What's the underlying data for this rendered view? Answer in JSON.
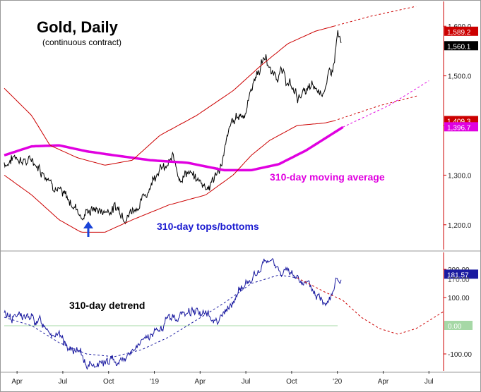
{
  "colors": {
    "price": "#000000",
    "cycle_band": "#cc0000",
    "projection": "#cc0000",
    "moving_average": "#e000e0",
    "detrend_line": "#1a1aa0",
    "detrend_cycle": "#1a1aa0",
    "zero_line": "#a6d8a6",
    "axis": "#cc0000",
    "arrow": "#1a44d8",
    "label_blue": "#1a1ad0",
    "label_magenta": "#e000e0"
  },
  "chart_data": [
    {
      "panel": "upper",
      "type": "line",
      "title": "Gold, Daily",
      "subtitle": "(continuous contract)",
      "ylim": [
        1150,
        1650
      ],
      "y_ticks": [
        1200,
        1300,
        1400,
        1500,
        1600
      ],
      "y_tick_labels": [
        "1,200.0",
        "1,300.0",
        "1,400.0",
        "1,500.0",
        "1,600.0"
      ],
      "price_labels": [
        {
          "value": 1589.2,
          "text": "1,589.2",
          "style": "red-box"
        },
        {
          "value": 1560.1,
          "text": "1,560.1",
          "style": "black-box"
        },
        {
          "value": 1409.3,
          "text": "1,409.3",
          "style": "red-box"
        },
        {
          "value": 1396.7,
          "text": "1,396.7",
          "style": "magenta-box"
        }
      ],
      "time_axis": {
        "start": 2018.2,
        "end": 2020.6,
        "ticks": [
          {
            "t": 2018.27,
            "label": "Apr"
          },
          {
            "t": 2018.52,
            "label": "Jul"
          },
          {
            "t": 2018.77,
            "label": "Oct"
          },
          {
            "t": 2019.02,
            "label": "'19"
          },
          {
            "t": 2019.27,
            "label": "Apr"
          },
          {
            "t": 2019.52,
            "label": "Jul"
          },
          {
            "t": 2019.77,
            "label": "Oct"
          },
          {
            "t": 2020.02,
            "label": "'20"
          },
          {
            "t": 2020.27,
            "label": "Apr"
          },
          {
            "t": 2020.52,
            "label": "Jul"
          }
        ]
      },
      "series": [
        {
          "name": "Gold price",
          "style": "black-noisy",
          "x": [
            2018.2,
            2018.23,
            2018.25,
            2018.27,
            2018.3,
            2018.33,
            2018.36,
            2018.4,
            2018.44,
            2018.48,
            2018.52,
            2018.56,
            2018.6,
            2018.63,
            2018.66,
            2018.7,
            2018.73,
            2018.76,
            2018.8,
            2018.84,
            2018.88,
            2018.92,
            2018.96,
            2019.0,
            2019.04,
            2019.08,
            2019.12,
            2019.16,
            2019.2,
            2019.24,
            2019.28,
            2019.32,
            2019.36,
            2019.4,
            2019.44,
            2019.48,
            2019.52,
            2019.56,
            2019.6,
            2019.63,
            2019.66,
            2019.7,
            2019.73,
            2019.76,
            2019.8,
            2019.84,
            2019.88,
            2019.92,
            2019.96,
            2020.0,
            2020.02,
            2020.04
          ],
          "y": [
            1325,
            1330,
            1335,
            1340,
            1335,
            1325,
            1330,
            1315,
            1300,
            1285,
            1255,
            1245,
            1235,
            1215,
            1230,
            1232,
            1228,
            1230,
            1235,
            1230,
            1225,
            1240,
            1250,
            1285,
            1320,
            1310,
            1330,
            1300,
            1310,
            1290,
            1285,
            1280,
            1300,
            1340,
            1400,
            1420,
            1430,
            1490,
            1520,
            1540,
            1500,
            1510,
            1495,
            1480,
            1460,
            1465,
            1470,
            1470,
            1480,
            1520,
            1585,
            1560
          ]
        },
        {
          "name": "310-day moving average",
          "style": "magenta",
          "x": [
            2018.2,
            2018.35,
            2018.5,
            2018.65,
            2018.8,
            2019.0,
            2019.2,
            2019.4,
            2019.55,
            2019.7,
            2019.85,
            2020.0,
            2020.05
          ],
          "y": [
            1340,
            1358,
            1360,
            1348,
            1340,
            1330,
            1325,
            1310,
            1310,
            1322,
            1350,
            1385,
            1396.7
          ]
        },
        {
          "name": "MA projection",
          "style": "magenta-dashed",
          "x": [
            2020.05,
            2020.3,
            2020.52
          ],
          "y": [
            1396.7,
            1440,
            1490
          ]
        },
        {
          "name": "Upper band",
          "style": "red-thin",
          "x": [
            2018.2,
            2018.35,
            2018.45,
            2018.6,
            2018.75,
            2018.9,
            2019.05,
            2019.25,
            2019.45,
            2019.6,
            2019.75,
            2019.9,
            2020.0
          ],
          "y": [
            1475,
            1420,
            1360,
            1335,
            1320,
            1330,
            1380,
            1420,
            1470,
            1520,
            1565,
            1590,
            1600
          ]
        },
        {
          "name": "Upper band projection",
          "style": "red-dashed",
          "x": [
            2020.0,
            2020.2,
            2020.45
          ],
          "y": [
            1600,
            1620,
            1640
          ]
        },
        {
          "name": "Lower band",
          "style": "red-thin",
          "x": [
            2018.2,
            2018.35,
            2018.5,
            2018.62,
            2018.75,
            2018.9,
            2019.1,
            2019.3,
            2019.45,
            2019.55,
            2019.65,
            2019.8,
            2019.95,
            2020.0
          ],
          "y": [
            1300,
            1260,
            1210,
            1185,
            1185,
            1210,
            1240,
            1260,
            1300,
            1340,
            1370,
            1400,
            1405,
            1409.3
          ]
        },
        {
          "name": "Lower band projection",
          "style": "red-dashed",
          "x": [
            2020.0,
            2020.25,
            2020.46
          ],
          "y": [
            1409.3,
            1440,
            1460
          ]
        }
      ],
      "annotations": [
        {
          "text": "310-day moving average",
          "near": "right of MA line"
        },
        {
          "text": "310-day tops/bottoms",
          "near": "below lows"
        }
      ],
      "arrow": {
        "x": 2018.62,
        "pointing": "up"
      }
    },
    {
      "panel": "lower",
      "type": "line",
      "ylim": [
        -160,
        260
      ],
      "y_ticks": [
        -100,
        100,
        200
      ],
      "y_tick_labels": [
        "-100.00",
        "100.00",
        "200.00"
      ],
      "zero_label": "0.00",
      "value_labels": [
        {
          "value": 181.57,
          "text": "181.57",
          "style": "blue-box"
        },
        {
          "value": 170.0,
          "text": "170.00",
          "style": "partially-hidden"
        }
      ],
      "series": [
        {
          "name": "310-day detrend",
          "style": "blue-noisy",
          "x": [
            2018.2,
            2018.28,
            2018.36,
            2018.44,
            2018.52,
            2018.6,
            2018.66,
            2018.72,
            2018.78,
            2018.86,
            2018.94,
            2019.02,
            2019.1,
            2019.18,
            2019.26,
            2019.34,
            2019.42,
            2019.5,
            2019.58,
            2019.64,
            2019.7,
            2019.76,
            2019.82,
            2019.88,
            2019.94,
            2019.98,
            2020.02,
            2020.04
          ],
          "y": [
            40,
            35,
            20,
            0,
            -60,
            -100,
            -140,
            -125,
            -130,
            -110,
            -70,
            -30,
            20,
            40,
            60,
            20,
            50,
            140,
            180,
            230,
            200,
            180,
            170,
            120,
            90,
            110,
            170,
            150
          ]
        },
        {
          "name": "Detrend cycle",
          "style": "blue-dashed",
          "x": [
            2018.2,
            2018.35,
            2018.5,
            2018.65,
            2018.8,
            2018.95,
            2019.1,
            2019.25,
            2019.4,
            2019.55,
            2019.7,
            2019.8
          ],
          "y": [
            30,
            0,
            -60,
            -100,
            -110,
            -85,
            -40,
            20,
            80,
            150,
            180,
            170
          ]
        },
        {
          "name": "Detrend projection",
          "style": "red-dashed",
          "x": [
            2019.8,
            2019.95,
            2020.05,
            2020.15,
            2020.25,
            2020.35,
            2020.45,
            2020.55,
            2020.6
          ],
          "y": [
            170,
            120,
            90,
            30,
            -10,
            -30,
            -10,
            30,
            50
          ]
        }
      ],
      "annotations": [
        {
          "text": "310-day detrend",
          "near": "upper-left"
        }
      ]
    }
  ],
  "text": {
    "title": "Gold, Daily",
    "subtitle": "(continuous contract)",
    "ma_label": "310-day moving average",
    "tops_label": "310-day tops/bottoms",
    "detrend_label": "310-day detrend"
  }
}
